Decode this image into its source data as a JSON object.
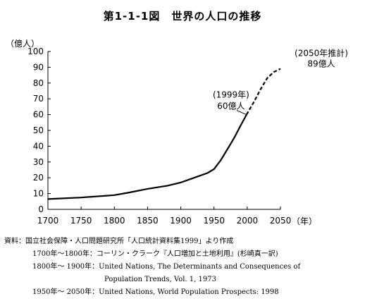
{
  "title": "第1-1-1図　世界の人口の推移",
  "chart_data": {
    "type": "line",
    "ylabel": "（億人）",
    "xlabel": "（年）",
    "xlim": [
      1700,
      2050
    ],
    "ylim": [
      0,
      100
    ],
    "x_ticks": [
      1700,
      1750,
      1800,
      1850,
      1900,
      1950,
      2000,
      2050
    ],
    "y_ticks": [
      0,
      10,
      20,
      30,
      40,
      50,
      60,
      70,
      80,
      90,
      100
    ],
    "x_tick_labels": [
      "1700",
      "1750",
      "1800",
      "1850",
      "1900",
      "1950",
      "2000",
      "2050"
    ],
    "y_tick_labels": [
      "0",
      "10",
      "20",
      "30",
      "40",
      "50",
      "60",
      "70",
      "80",
      "90",
      "100"
    ],
    "grid": false,
    "series": [
      {
        "style": "solid",
        "x": [
          1700,
          1750,
          1800,
          1820,
          1850,
          1880,
          1900,
          1920,
          1940,
          1950,
          1960,
          1970,
          1980,
          1990,
          1999
        ],
        "y": [
          6.5,
          7.5,
          9,
          10.5,
          13,
          15,
          17,
          20,
          23,
          25.5,
          31,
          38,
          45,
          53,
          60
        ]
      },
      {
        "style": "dashed",
        "x": [
          1999,
          2010,
          2020,
          2030,
          2040,
          2050
        ],
        "y": [
          60,
          68,
          76,
          83,
          87,
          89
        ]
      }
    ],
    "annotations": [
      {
        "lines": [
          "(1999年)",
          "60億人"
        ],
        "x": 1999,
        "y": 60
      },
      {
        "lines": [
          "(2050年推計)",
          "89億人"
        ],
        "x": 2050,
        "y": 89
      }
    ]
  },
  "source": [
    {
      "level": 0,
      "text": "資料：国立社会保障・人口問題研究所「人口統計資料集1999」より作成"
    },
    {
      "level": 1,
      "text": "1700年〜1800年：コーリン・クラーク『人口増加と土地利用』(杉崎真一訳)"
    },
    {
      "level": 1,
      "text": "1800年〜 1900年：United Nations, The Determinants and Consequences of"
    },
    {
      "level": 2,
      "text": "Population Trends, Vol. 1, 1973"
    },
    {
      "level": 1,
      "text": "1950年〜 2050年：United Nations, World Population Prospects: 1998"
    }
  ]
}
